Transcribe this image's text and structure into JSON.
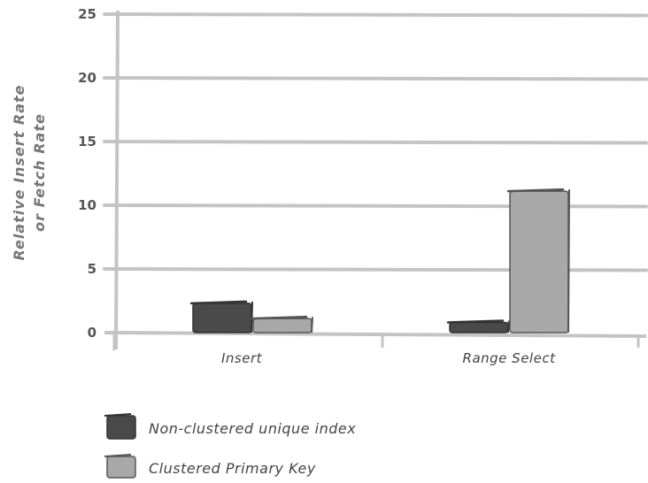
{
  "chart_data": {
    "type": "bar",
    "title": "",
    "xlabel": "",
    "ylabel_lines": [
      "Relative Insert Rate",
      "or Fetch Rate"
    ],
    "categories": [
      "Insert",
      "Range Select"
    ],
    "series": [
      {
        "name": "Non-clustered unique index",
        "values": [
          2.3,
          0.8
        ],
        "color": "#4a4a4a"
      },
      {
        "name": "Clustered Primary Key",
        "values": [
          1.1,
          11.1
        ],
        "color": "#a8a8a8"
      }
    ],
    "ylim": [
      0,
      25
    ],
    "yticks": [
      "0",
      "5",
      "10",
      "15",
      "20",
      "25"
    ],
    "grid": true,
    "legend_position": "bottom-left"
  }
}
